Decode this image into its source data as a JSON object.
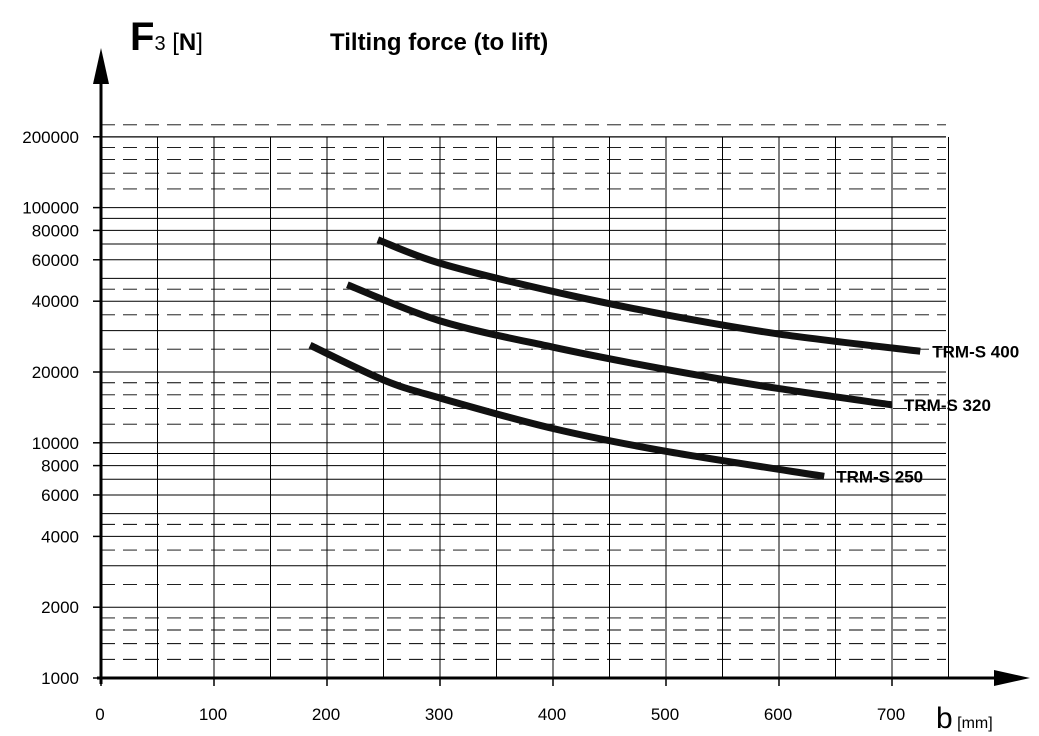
{
  "chart_data": {
    "type": "line",
    "title_parts": {
      "open": "Tilting force (",
      "bold": "to lift",
      "close": ")"
    },
    "ylabel_parts": {
      "symbol": "F",
      "sub": "3",
      "bracket_open": " [",
      "unit": "N",
      "bracket_close": "]"
    },
    "xlabel_parts": {
      "symbol": "b",
      "unit": " [mm]"
    },
    "x_ticks": [
      "0",
      "100",
      "200",
      "300",
      "400",
      "500",
      "600",
      "700"
    ],
    "y_ticks": [
      "1000",
      "2000",
      "4000",
      "6000",
      "8000",
      "10000",
      "20000",
      "40000",
      "60000",
      "80000",
      "100000",
      "200000"
    ],
    "y_scale": "log",
    "xlim": [
      0,
      750
    ],
    "ylim": [
      1000,
      250000
    ],
    "grid": true,
    "series": [
      {
        "name": "TRM-S 400",
        "x": [
          245,
          300,
          400,
          500,
          600,
          725
        ],
        "y": [
          73000,
          58000,
          44000,
          35000,
          29000,
          24500
        ]
      },
      {
        "name": "TRM-S 320",
        "x": [
          218,
          300,
          400,
          500,
          600,
          700
        ],
        "y": [
          47000,
          33000,
          25500,
          20500,
          17000,
          14500
        ]
      },
      {
        "name": "TRM-S 250",
        "x": [
          185,
          250,
          300,
          400,
          500,
          640
        ],
        "y": [
          26000,
          18500,
          15500,
          11500,
          9200,
          7200
        ]
      }
    ]
  }
}
